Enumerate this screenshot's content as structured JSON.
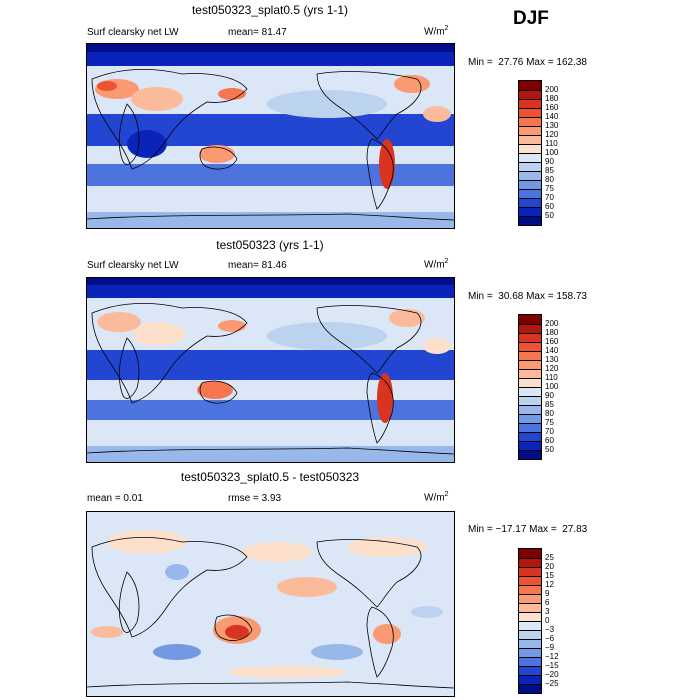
{
  "season": "DJF",
  "panels": [
    {
      "title": "test050323_splat0.5 (yrs 1-1)",
      "left_label": "Surf clearsky net LW",
      "mean_label": "mean=  81.47",
      "units": "W/m",
      "units_sup": "2",
      "minmax": "Min =  27.76 Max = 162.38",
      "levels": [
        "200",
        "180",
        "160",
        "140",
        "130",
        "120",
        "110",
        "100",
        "90",
        "85",
        "80",
        "75",
        "70",
        "60",
        "50"
      ],
      "colors": [
        "#7f0000",
        "#b2160f",
        "#d8341f",
        "#ee5233",
        "#f5764f",
        "#f99a72",
        "#fbbb9b",
        "#fde0cc",
        "#dbe7f7",
        "#bcd3f0",
        "#98b8ea",
        "#7499e4",
        "#4d74de",
        "#2346d2",
        "#0a23b8",
        "#000e8c"
      ]
    },
    {
      "title": "test050323 (yrs 1-1)",
      "left_label": "Surf clearsky net LW",
      "mean_label": "mean=  81.46",
      "units": "W/m",
      "units_sup": "2",
      "minmax": "Min =  30.68 Max = 158.73",
      "levels": [
        "200",
        "180",
        "160",
        "140",
        "130",
        "120",
        "110",
        "100",
        "90",
        "85",
        "80",
        "75",
        "70",
        "60",
        "50"
      ],
      "colors": [
        "#7f0000",
        "#b2160f",
        "#d8341f",
        "#ee5233",
        "#f5764f",
        "#f99a72",
        "#fbbb9b",
        "#fde0cc",
        "#dbe7f7",
        "#bcd3f0",
        "#98b8ea",
        "#7499e4",
        "#4d74de",
        "#2346d2",
        "#0a23b8",
        "#000e8c"
      ]
    },
    {
      "title": "test050323_splat0.5 - test050323",
      "left_label": "mean =   0.01",
      "mean_label": "rmse =   3.93",
      "units": "W/m",
      "units_sup": "2",
      "minmax": "Min = −17.17 Max =  27.83",
      "levels": [
        "25",
        "20",
        "15",
        "12",
        "9",
        "6",
        "3",
        "0",
        "−3",
        "−6",
        "−9",
        "−12",
        "−15",
        "−20",
        "−25"
      ],
      "colors": [
        "#7f0000",
        "#b2160f",
        "#d8341f",
        "#ee5233",
        "#f5764f",
        "#f99a72",
        "#fbbb9b",
        "#fde0cc",
        "#dbe7f7",
        "#bcd3f0",
        "#98b8ea",
        "#7499e4",
        "#4d74de",
        "#2346d2",
        "#0a23b8",
        "#000e8c"
      ]
    }
  ]
}
